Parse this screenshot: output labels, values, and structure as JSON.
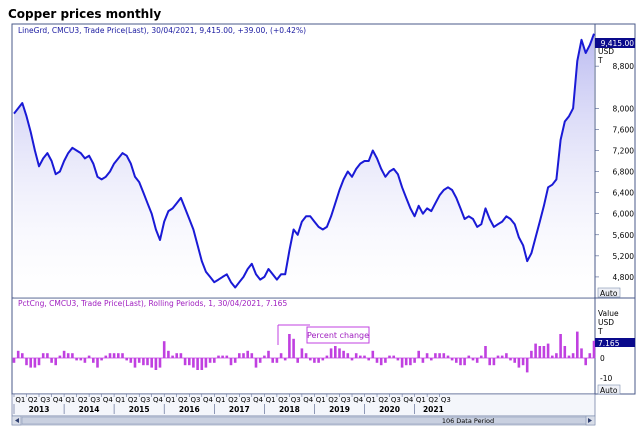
{
  "window": {
    "title": "Copper prices monthly"
  },
  "colors": {
    "line": "#1a1ad6",
    "fill": "#c8c8f2",
    "bars": "#c040e0",
    "value_badge": "#0a0a8c",
    "frame": "#4a5a8a"
  },
  "top_panel": {
    "legend": "LineGrd, CMCU3, Trade Price(Last), 30/04/2021, 9,415.00, +39.00, (+0.42%)",
    "last_value": "9,415.00",
    "units": [
      "USD",
      "T"
    ],
    "y_ticks": [
      "8,800",
      "8,000",
      "7,600",
      "7,200",
      "6,800",
      "6,400",
      "6,000",
      "5,600",
      "5,200",
      "4,800"
    ],
    "auto_label": "Auto"
  },
  "bottom_panel": {
    "legend": "PctCng, CMCU3, Trade Price(Last), Rolling Periods, 1, 30/04/2021, 7.165",
    "tooltip": "Percent change",
    "units": [
      "Value",
      "USD",
      "T"
    ],
    "last_value": "7.165",
    "y_ticks": [
      "0",
      "-10"
    ],
    "auto_label": "Auto"
  },
  "x_axis": {
    "quarters": [
      "Q1",
      "Q2",
      "Q3",
      "Q4",
      "Q1",
      "Q2",
      "Q3",
      "Q4",
      "Q1",
      "Q2",
      "Q3",
      "Q4",
      "Q1",
      "Q2",
      "Q3",
      "Q4",
      "Q1",
      "Q2",
      "Q3",
      "Q4",
      "Q1",
      "Q2",
      "Q3",
      "Q4",
      "Q1",
      "Q2",
      "Q3",
      "Q4",
      "Q1",
      "Q2",
      "Q3",
      "Q4",
      "Q1",
      "Q2",
      "Q3"
    ],
    "years": [
      "2013",
      "2014",
      "2015",
      "2016",
      "2017",
      "2018",
      "2019",
      "2020",
      "2021"
    ],
    "period_label": "106 Data Period"
  },
  "chart_data": [
    {
      "type": "area",
      "title": "Copper prices monthly",
      "series_label": "LineGrd, CMCU3, Trade Price(Last)",
      "x_start": "2013-01",
      "x_end": "2021-04",
      "ylim": [
        4400,
        9600
      ],
      "y_unit": "USD / T",
      "values": [
        7900,
        8000,
        8100,
        7850,
        7550,
        7200,
        6900,
        7050,
        7150,
        7000,
        6750,
        6800,
        7000,
        7150,
        7250,
        7200,
        7150,
        7050,
        7100,
        6950,
        6700,
        6650,
        6700,
        6800,
        6950,
        7050,
        7150,
        7100,
        6950,
        6700,
        6600,
        6400,
        6200,
        6000,
        5700,
        5500,
        5850,
        6050,
        6100,
        6200,
        6300,
        6100,
        5900,
        5700,
        5400,
        5100,
        4900,
        4800,
        4700,
        4750,
        4800,
        4850,
        4700,
        4600,
        4700,
        4800,
        4950,
        5050,
        4850,
        4750,
        4800,
        4950,
        4850,
        4750,
        4850,
        4850,
        5300,
        5700,
        5600,
        5850,
        5950,
        5950,
        5850,
        5750,
        5700,
        5750,
        5950,
        6200,
        6450,
        6650,
        6800,
        6700,
        6850,
        6950,
        7000,
        7000,
        7200,
        7050,
        6850,
        6700,
        6800,
        6850,
        6750,
        6500,
        6300,
        6100,
        5950,
        6150,
        6000,
        6100,
        6050,
        6200,
        6350,
        6450,
        6500,
        6450,
        6300,
        6100,
        5900,
        5950,
        5900,
        5750,
        5800,
        6100,
        5900,
        5750,
        5800,
        5850,
        5950,
        5900,
        5800,
        5550,
        5400,
        5100,
        5250,
        5550,
        5850,
        6150,
        6500,
        6550,
        6650,
        7400,
        7750,
        7850,
        8000,
        8900,
        9300,
        9050,
        9200,
        9415
      ],
      "last": 9415.0,
      "change": 39.0,
      "change_pct": 0.42
    },
    {
      "type": "bar",
      "series_label": "PctCng, CMCU3, Trade Price(Last), Rolling Periods, 1",
      "ylim": [
        -15,
        25
      ],
      "values": [
        -2,
        3,
        2,
        -3,
        -4,
        -4,
        -3,
        2,
        2,
        -2,
        -3,
        1,
        3,
        2,
        2,
        -1,
        -1,
        -2,
        1,
        -2,
        -4,
        -1,
        1,
        2,
        2,
        2,
        2,
        -1,
        -2,
        -4,
        -2,
        -3,
        -3,
        -4,
        -5,
        -4,
        7,
        3,
        1,
        2,
        2,
        -3,
        -3,
        -4,
        -5,
        -5,
        -4,
        -2,
        -2,
        1,
        1,
        1,
        -3,
        -2,
        2,
        2,
        3,
        2,
        -4,
        -2,
        1,
        3,
        -2,
        -2,
        2,
        -1,
        10,
        8,
        -2,
        4,
        2,
        -1,
        -2,
        -2,
        -1,
        1,
        4,
        5,
        4,
        3,
        2,
        -1,
        2,
        1,
        1,
        -1,
        3,
        -2,
        -3,
        -2,
        1,
        1,
        -1,
        -4,
        -3,
        -3,
        -2,
        3,
        -2,
        2,
        -1,
        2,
        2,
        2,
        1,
        -1,
        -2,
        -3,
        -3,
        1,
        -1,
        -2,
        1,
        5,
        -3,
        -3,
        1,
        1,
        2,
        -1,
        -2,
        -4,
        -3,
        -6,
        3,
        6,
        5,
        5,
        6,
        1,
        2,
        10,
        5,
        1,
        2,
        11,
        4,
        -3,
        2,
        7.165
      ]
    }
  ]
}
